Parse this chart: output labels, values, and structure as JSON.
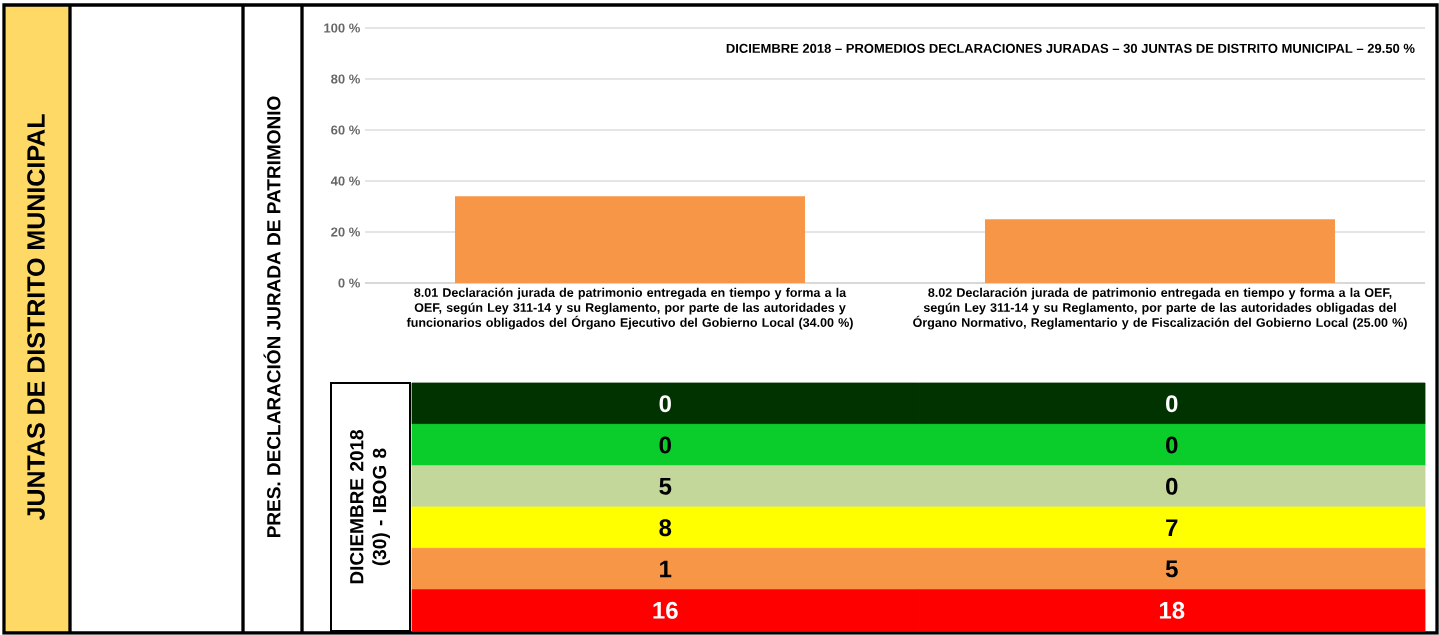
{
  "chart_data": [
    {
      "type": "bar",
      "title": "DICIEMBRE  2018 – PROMEDIOS  DECLARACIONES  JURADAS – 30 JUNTAS DE DISTRITO  MUNICIPAL  – 29.50 %",
      "ylabel": "PRES. DECLARACIÓN  JURADA DE PATRIMONIO",
      "annotations": [
        "JUNTAS DE DISTRITO MUNICIPAL"
      ],
      "categories": [
        "8.01 Declaración jurada de patrimonio entregada en tiempo y forma a la OEF, según Ley 311-14 y su Reglamento, por parte de las autoridades y funcionarios obligados del Órgano Ejecutivo del Gobierno Local  (34.00 %)",
        "8.02 Declaración jurada de patrimonio entregada en tiempo y forma a la OEF, según Ley 311-14 y su Reglamento, por parte de las autoridades obligadas del Órgano Normativo, Reglamentario y de Fiscalización del Gobierno Local  (25.00 %)"
      ],
      "values": [
        34,
        25
      ],
      "color": "#f79646",
      "ylim": [
        0,
        100
      ],
      "yticks": [
        {
          "value": 0,
          "label": "0 %"
        },
        {
          "value": 20,
          "label": "20 %"
        },
        {
          "value": 40,
          "label": "40 %"
        },
        {
          "value": 60,
          "label": "60 %"
        },
        {
          "value": 80,
          "label": "80 %"
        },
        {
          "value": 100,
          "label": "100 %"
        }
      ],
      "grid": "y"
    },
    {
      "type": "other",
      "ylabel": "DICIEMBRE 2018 (30) - IBOG 8",
      "annotations": [
        "0",
        "0",
        "0",
        "0",
        "5",
        "0",
        "8",
        "7",
        "1",
        "5",
        "16",
        "18"
      ],
      "colors": [
        "#003300",
        "#0acc2a",
        "#c4d79b",
        "#ffff00",
        "#f79646",
        "#ff0000"
      ]
    }
  ]
}
